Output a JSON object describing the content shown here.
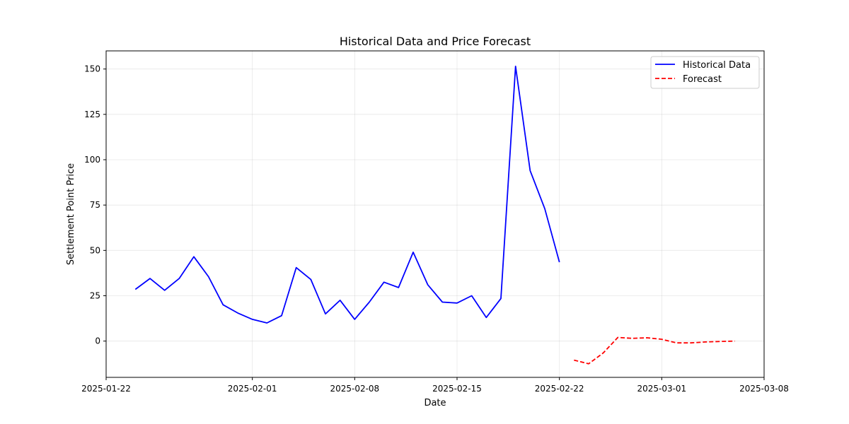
{
  "chart_data": {
    "type": "line",
    "title": "Historical Data and Price Forecast",
    "xlabel": "Date",
    "ylabel": "Settlement Point Price",
    "xlim": [
      "2025-01-22",
      "2025-03-08"
    ],
    "ylim": [
      -20,
      160
    ],
    "x_ticks": [
      "2025-01-22",
      "2025-02-01",
      "2025-02-08",
      "2025-02-15",
      "2025-02-22",
      "2025-03-01",
      "2025-03-08"
    ],
    "y_ticks": [
      0,
      25,
      50,
      75,
      100,
      125,
      150
    ],
    "grid": true,
    "legend_position": "top-right",
    "series": [
      {
        "name": "Historical Data",
        "color": "#0000ff",
        "style": "solid",
        "x": [
          "2025-01-24",
          "2025-01-25",
          "2025-01-26",
          "2025-01-27",
          "2025-01-28",
          "2025-01-29",
          "2025-01-30",
          "2025-01-31",
          "2025-02-01",
          "2025-02-02",
          "2025-02-03",
          "2025-02-04",
          "2025-02-05",
          "2025-02-06",
          "2025-02-07",
          "2025-02-08",
          "2025-02-09",
          "2025-02-10",
          "2025-02-11",
          "2025-02-12",
          "2025-02-13",
          "2025-02-14",
          "2025-02-15",
          "2025-02-16",
          "2025-02-17",
          "2025-02-18",
          "2025-02-19",
          "2025-02-20",
          "2025-02-21",
          "2025-02-22"
        ],
        "values": [
          28.5,
          34.5,
          28,
          34.5,
          46.5,
          35.5,
          20,
          15.5,
          12,
          10,
          14,
          40.5,
          34,
          15,
          22.5,
          12,
          21.5,
          32.5,
          29.5,
          49,
          31,
          21.5,
          21,
          25,
          13,
          23.5,
          151.5,
          94,
          73,
          43.5
        ]
      },
      {
        "name": "Forecast",
        "color": "#ff0000",
        "style": "dashed",
        "x": [
          "2025-02-23",
          "2025-02-24",
          "2025-02-25",
          "2025-02-26",
          "2025-02-27",
          "2025-02-28",
          "2025-03-01",
          "2025-03-02",
          "2025-03-03",
          "2025-03-04",
          "2025-03-05",
          "2025-03-06"
        ],
        "values": [
          -10.5,
          -12.5,
          -6.5,
          2,
          1.5,
          1.8,
          1,
          -1,
          -1,
          -0.5,
          -0.2,
          0
        ]
      }
    ]
  }
}
